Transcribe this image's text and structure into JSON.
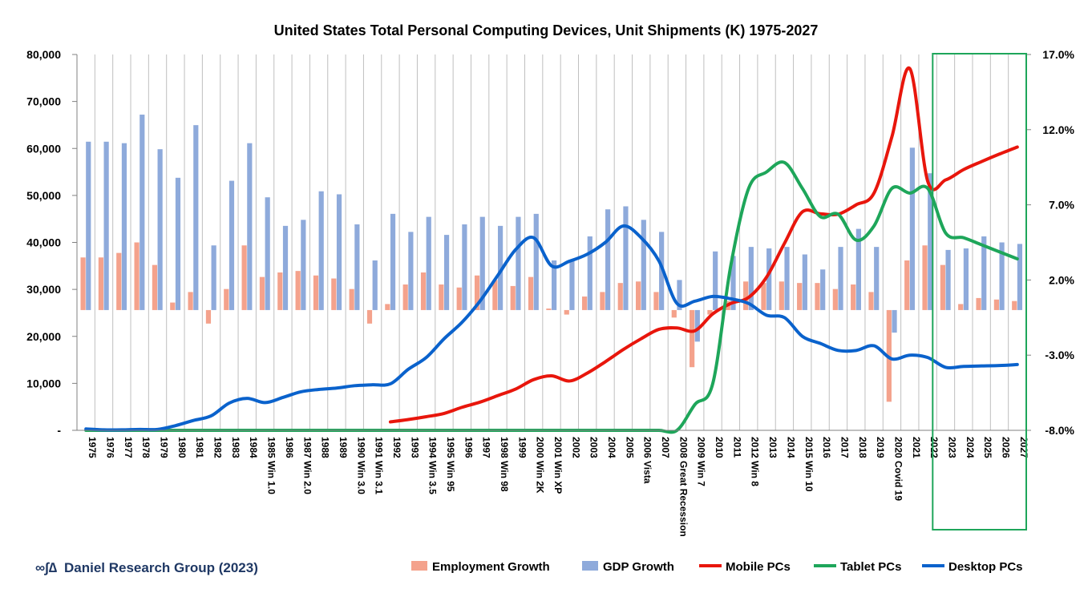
{
  "chart_data": {
    "type": "bar+line",
    "title": "United States Total Personal Computing Devices, Unit Shipments (K) 1975-2027",
    "categories": [
      "1975",
      "1976",
      "1977",
      "1978",
      "1979",
      "1980",
      "1981",
      "1982",
      "1983",
      "1984",
      "1985 Win 1.0",
      "1986",
      "1987 Win 2.0",
      "1988",
      "1989",
      "1990 Win 3.0",
      "1991 Win 3.1",
      "1992",
      "1993",
      "1994 Win 3.5",
      "1995 Win 95",
      "1996",
      "1997",
      "1998 Win 98",
      "1999",
      "2000 Win 2K",
      "2001 Win XP",
      "2002",
      "2003",
      "2004",
      "2005",
      "2006 Vista",
      "2007",
      "2008 Great Recession",
      "2009 Win 7",
      "2010",
      "2011",
      "2012 Win 8",
      "2013",
      "2014",
      "2015 Win 10",
      "2016",
      "2017",
      "2018",
      "2019",
      "2020 Covid 19",
      "2021",
      "2022",
      "2023",
      "2024",
      "2025",
      "2026",
      "2027"
    ],
    "y_left": {
      "min": 0,
      "max": 80000,
      "ticks": [
        "-",
        "10,000",
        "20,000",
        "30,000",
        "40,000",
        "50,000",
        "60,000",
        "70,000",
        "80,000"
      ]
    },
    "y_right": {
      "min": -8.0,
      "max": 17.0,
      "ticks": [
        "-8.0%",
        "-3.0%",
        "2.0%",
        "7.0%",
        "12.0%",
        "17.0%"
      ]
    },
    "grid": "vertical",
    "legend_position": "bottom",
    "bar_series": [
      {
        "name": "Employment Growth",
        "color": "#f4a28c",
        "axis": "right",
        "values": [
          3.5,
          3.5,
          3.8,
          4.5,
          3.0,
          0.5,
          1.2,
          -0.9,
          1.4,
          4.3,
          2.2,
          2.5,
          2.6,
          2.3,
          2.1,
          1.4,
          -0.9,
          0.4,
          1.7,
          2.5,
          1.7,
          1.5,
          2.3,
          2.0,
          1.6,
          2.2,
          0.1,
          -0.3,
          0.9,
          1.2,
          1.8,
          1.9,
          1.2,
          -0.5,
          -3.8,
          -0.3,
          0.6,
          1.9,
          1.8,
          1.9,
          1.8,
          1.8,
          1.4,
          1.7,
          1.2,
          -6.1,
          3.3,
          4.3,
          3.0,
          0.4,
          0.8,
          0.7,
          0.6
        ]
      },
      {
        "name": "GDP Growth",
        "color": "#8eaadb",
        "axis": "right",
        "values": [
          11.2,
          11.2,
          11.1,
          13.0,
          10.7,
          8.8,
          12.3,
          4.3,
          8.6,
          11.1,
          7.5,
          5.6,
          6.0,
          7.9,
          7.7,
          5.7,
          3.3,
          6.4,
          5.2,
          6.2,
          5.0,
          5.7,
          6.2,
          5.6,
          6.2,
          6.4,
          3.3,
          3.3,
          4.9,
          6.7,
          6.9,
          6.0,
          5.2,
          2.0,
          -2.1,
          3.9,
          3.6,
          4.2,
          4.1,
          4.2,
          3.7,
          2.7,
          4.2,
          5.4,
          4.2,
          -1.5,
          10.8,
          9.1,
          4.0,
          4.1,
          4.9,
          4.5,
          4.4
        ]
      }
    ],
    "line_series": [
      {
        "name": "Mobile PCs",
        "color": "#e8160c",
        "axis": "left",
        "values": [
          null,
          null,
          null,
          null,
          null,
          null,
          null,
          null,
          null,
          null,
          null,
          null,
          null,
          null,
          null,
          null,
          null,
          1800,
          2300,
          2900,
          3600,
          4900,
          6000,
          7400,
          8800,
          10800,
          11600,
          10500,
          12200,
          14600,
          17200,
          19500,
          21500,
          21800,
          21200,
          24800,
          27000,
          28300,
          32600,
          39800,
          46500,
          46100,
          46000,
          48000,
          50500,
          62500,
          77000,
          53000,
          53300,
          55500,
          57200,
          58800,
          60300
        ]
      },
      {
        "name": "Tablet PCs",
        "color": "#1ea65a",
        "axis": "left",
        "values": [
          0,
          0,
          0,
          0,
          0,
          0,
          0,
          0,
          0,
          0,
          0,
          0,
          0,
          0,
          0,
          0,
          0,
          0,
          0,
          0,
          0,
          0,
          0,
          0,
          0,
          0,
          0,
          0,
          0,
          0,
          0,
          0,
          0,
          0,
          5500,
          10000,
          35000,
          51500,
          55000,
          57000,
          51500,
          45500,
          46000,
          40500,
          43500,
          51500,
          50500,
          51500,
          42000,
          41000,
          39500,
          38000,
          36500
        ]
      },
      {
        "name": "Desktop PCs",
        "color": "#0a62cc",
        "axis": "left",
        "values": [
          300,
          100,
          100,
          200,
          200,
          1000,
          2100,
          3100,
          5800,
          6800,
          5900,
          7000,
          8200,
          8700,
          9000,
          9500,
          9700,
          9900,
          13000,
          15500,
          19500,
          23000,
          27500,
          33000,
          38500,
          41000,
          35000,
          36000,
          37500,
          40000,
          43500,
          41000,
          36000,
          27000,
          27500,
          28500,
          28000,
          27000,
          24500,
          24000,
          20000,
          18500,
          17000,
          17000,
          18000,
          15200,
          16000,
          15500,
          13400,
          13600,
          13700,
          13800,
          14000
        ]
      }
    ],
    "highlight_box": {
      "from": "2023",
      "to": "2027",
      "color": "#1ea65a"
    }
  },
  "brand": {
    "symbol": "∞∫∆",
    "text": "Daniel Research Group (2023)"
  },
  "legend": [
    "Employment Growth",
    "GDP Growth",
    "Mobile PCs",
    "Tablet PCs",
    "Desktop PCs"
  ]
}
